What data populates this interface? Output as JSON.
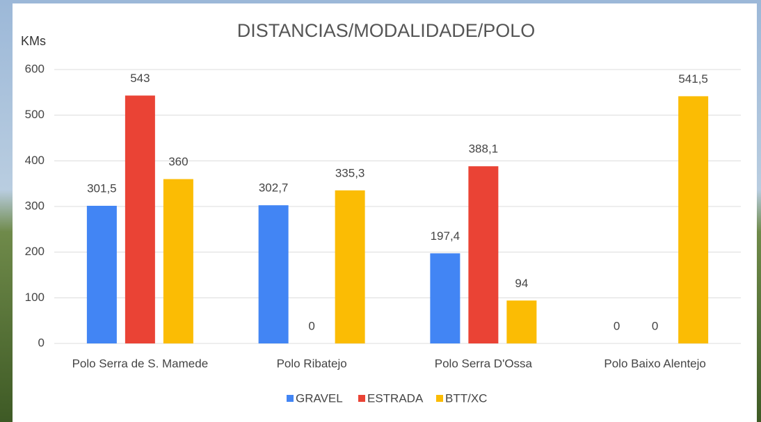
{
  "chart_data": {
    "type": "bar",
    "title": "DISTANCIAS/MODALIDADE/POLO",
    "y_label": "KMs",
    "categories": [
      "Polo Serra de S. Mamede",
      "Polo Ribatejo",
      "Polo Serra D'Ossa",
      "Polo Baixo Alentejo"
    ],
    "series": [
      {
        "name": "GRAVEL",
        "color": "#4285f4",
        "values": [
          301.5,
          302.7,
          197.4,
          0
        ],
        "value_labels": [
          "301,5",
          "302,7",
          "197,4",
          "0"
        ]
      },
      {
        "name": "ESTRADA",
        "color": "#ea4335",
        "values": [
          543,
          0,
          388.1,
          0
        ],
        "value_labels": [
          "543",
          "0",
          "388,1",
          "0"
        ]
      },
      {
        "name": "BTT/XC",
        "color": "#fbbc04",
        "values": [
          360,
          335.3,
          94,
          541.5
        ],
        "value_labels": [
          "360",
          "335,3",
          "94",
          "541,5"
        ]
      }
    ],
    "ylim": [
      0,
      600
    ],
    "yticks": [
      0,
      100,
      200,
      300,
      400,
      500,
      600
    ],
    "grid": true,
    "legend": "bottom"
  }
}
